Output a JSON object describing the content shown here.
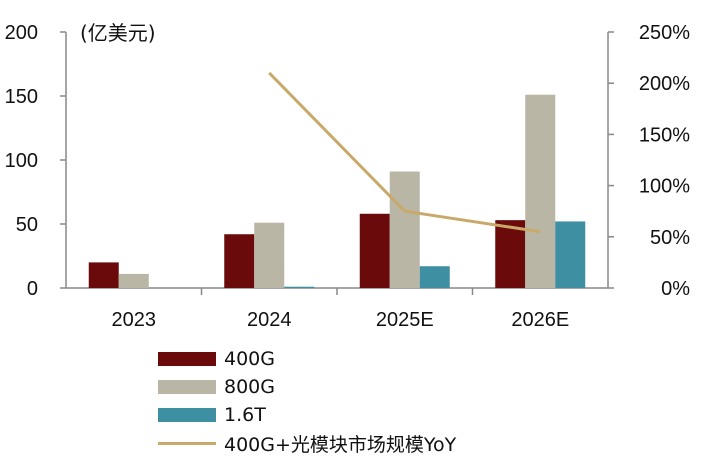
{
  "chart_data": {
    "type": "bar",
    "unit_label": "(亿美元)",
    "categories": [
      "2023",
      "2024",
      "2025E",
      "2026E"
    ],
    "series": [
      {
        "name": "400G",
        "values": [
          20,
          42,
          58,
          53
        ],
        "color": "#6b0a0a"
      },
      {
        "name": "800G",
        "values": [
          11,
          51,
          91,
          151
        ],
        "color": "#b9b6a5"
      },
      {
        "name": "1.6T",
        "values": [
          0,
          1,
          17,
          52
        ],
        "color": "#3e8fa2"
      }
    ],
    "line_series": {
      "name": "400G+光模块市场规模YoY",
      "axis": "right",
      "values": [
        null,
        210,
        75,
        55
      ],
      "color": "#c8a96a"
    },
    "y_left": {
      "min": 0,
      "max": 200,
      "ticks": [
        "0",
        "50",
        "100",
        "150",
        "200"
      ]
    },
    "y_right": {
      "min": 0,
      "max": 250,
      "ticks": [
        "0%",
        "50%",
        "100%",
        "150%",
        "200%",
        "250%"
      ]
    },
    "grid": false,
    "legend_position": "bottom"
  }
}
